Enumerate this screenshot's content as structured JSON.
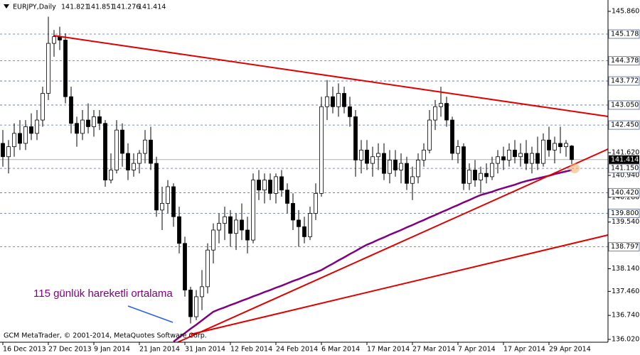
{
  "chart_data": {
    "type": "candlestick",
    "title": "EURJPY,Daily",
    "categories": [
      "16 Dec 2013",
      null,
      null,
      null,
      null,
      null,
      null,
      null,
      "27 Dec 2013",
      null,
      null,
      null,
      null,
      null,
      null,
      null,
      "9 Jan 2014",
      null,
      null,
      null,
      null,
      null,
      null,
      null,
      "21 Jan 2014",
      null,
      null,
      null,
      null,
      null,
      null,
      null,
      "31 Jan 2014",
      null,
      null,
      null,
      null,
      null,
      null,
      null,
      "12 Feb 2014",
      null,
      null,
      null,
      null,
      null,
      null,
      null,
      "24 Feb 2014",
      null,
      null,
      null,
      null,
      null,
      null,
      null,
      "6 Mar 2014",
      null,
      null,
      null,
      null,
      null,
      null,
      null,
      "17 Mar 2014",
      null,
      null,
      null,
      null,
      null,
      null,
      null,
      "27 Mar 2014",
      null,
      null,
      null,
      null,
      null,
      null,
      null,
      "7 Apr 2014",
      null,
      null,
      null,
      null,
      null,
      null,
      null,
      "17 Apr 2014",
      null,
      null,
      null,
      null,
      null,
      null,
      null,
      "29 Apr 2014",
      null,
      null,
      null,
      null
    ],
    "ohlc": [
      [
        141.9,
        142.3,
        141.2,
        141.5
      ],
      [
        141.5,
        142.0,
        141.0,
        141.8
      ],
      [
        141.8,
        142.5,
        141.5,
        142.2
      ],
      [
        142.2,
        142.6,
        141.7,
        141.9
      ],
      [
        141.9,
        142.6,
        141.7,
        142.4
      ],
      [
        142.4,
        142.8,
        142.0,
        142.2
      ],
      [
        142.2,
        142.9,
        142.0,
        142.6
      ],
      [
        142.6,
        143.6,
        142.4,
        143.4
      ],
      [
        143.4,
        145.7,
        143.2,
        144.9
      ],
      [
        144.9,
        145.3,
        144.5,
        145.1
      ],
      [
        145.1,
        145.4,
        144.7,
        145.0
      ],
      [
        145.0,
        145.2,
        143.1,
        143.3
      ],
      [
        143.3,
        143.6,
        142.2,
        142.5
      ],
      [
        142.5,
        142.7,
        141.8,
        142.2
      ],
      [
        142.2,
        142.9,
        142.0,
        142.6
      ],
      [
        142.6,
        143.1,
        142.2,
        142.4
      ],
      [
        142.4,
        142.9,
        142.1,
        142.7
      ],
      [
        142.7,
        142.9,
        142.3,
        142.5
      ],
      [
        142.5,
        142.6,
        140.6,
        140.8
      ],
      [
        140.8,
        141.6,
        140.7,
        141.1
      ],
      [
        141.1,
        142.6,
        141.0,
        142.3
      ],
      [
        142.3,
        142.5,
        141.2,
        141.6
      ],
      [
        141.6,
        141.9,
        140.8,
        141.1
      ],
      [
        141.1,
        141.6,
        140.9,
        141.3
      ],
      [
        141.3,
        141.7,
        141.0,
        141.6
      ],
      [
        141.6,
        142.3,
        141.3,
        142.0
      ],
      [
        142.0,
        142.4,
        141.1,
        141.3
      ],
      [
        141.3,
        141.5,
        139.7,
        139.9
      ],
      [
        139.9,
        140.6,
        139.3,
        140.1
      ],
      [
        140.1,
        140.8,
        139.8,
        140.6
      ],
      [
        140.6,
        140.7,
        139.4,
        139.7
      ],
      [
        139.7,
        140.0,
        138.6,
        138.9
      ],
      [
        138.9,
        139.1,
        137.3,
        137.5
      ],
      [
        137.5,
        137.6,
        136.5,
        136.7
      ],
      [
        136.7,
        137.5,
        136.6,
        137.3
      ],
      [
        137.3,
        138.1,
        136.9,
        137.6
      ],
      [
        137.6,
        138.9,
        137.4,
        138.7
      ],
      [
        138.7,
        139.5,
        138.3,
        139.3
      ],
      [
        139.3,
        139.8,
        138.9,
        139.5
      ],
      [
        139.5,
        140.0,
        139.0,
        139.7
      ],
      [
        139.7,
        139.9,
        138.8,
        139.2
      ],
      [
        139.2,
        139.8,
        138.7,
        139.6
      ],
      [
        139.6,
        140.1,
        139.0,
        139.3
      ],
      [
        139.3,
        139.7,
        138.6,
        139.0
      ],
      [
        139.0,
        141.0,
        138.9,
        140.8
      ],
      [
        140.8,
        141.1,
        140.2,
        140.5
      ],
      [
        140.5,
        141.0,
        140.1,
        140.8
      ],
      [
        140.8,
        141.0,
        140.2,
        140.4
      ],
      [
        140.4,
        141.0,
        140.1,
        140.9
      ],
      [
        140.9,
        141.1,
        140.3,
        140.5
      ],
      [
        140.5,
        140.7,
        139.8,
        140.1
      ],
      [
        140.1,
        140.4,
        139.3,
        139.6
      ],
      [
        139.6,
        139.9,
        138.8,
        139.4
      ],
      [
        139.4,
        139.7,
        138.9,
        139.1
      ],
      [
        139.1,
        140.0,
        139.0,
        139.8
      ],
      [
        139.8,
        140.7,
        139.6,
        140.4
      ],
      [
        140.4,
        143.3,
        140.3,
        143.0
      ],
      [
        143.0,
        143.8,
        142.6,
        143.3
      ],
      [
        143.3,
        143.6,
        142.8,
        143.0
      ],
      [
        143.0,
        143.7,
        142.7,
        143.4
      ],
      [
        143.4,
        143.6,
        142.8,
        143.0
      ],
      [
        143.0,
        143.3,
        142.4,
        142.7
      ],
      [
        142.7,
        142.9,
        140.9,
        141.4
      ],
      [
        141.4,
        142.0,
        141.0,
        141.7
      ],
      [
        141.7,
        142.0,
        141.1,
        141.3
      ],
      [
        141.3,
        141.8,
        140.9,
        141.5
      ],
      [
        141.5,
        141.9,
        141.1,
        141.6
      ],
      [
        141.6,
        141.9,
        140.8,
        141.0
      ],
      [
        141.0,
        141.7,
        140.7,
        141.4
      ],
      [
        141.4,
        141.7,
        140.9,
        141.1
      ],
      [
        141.1,
        141.6,
        140.7,
        141.3
      ],
      [
        141.3,
        141.5,
        140.5,
        140.7
      ],
      [
        140.7,
        141.2,
        140.2,
        140.9
      ],
      [
        140.9,
        141.6,
        140.7,
        141.4
      ],
      [
        141.4,
        141.9,
        141.2,
        141.7
      ],
      [
        141.7,
        142.9,
        141.6,
        142.6
      ],
      [
        142.6,
        143.2,
        142.3,
        143.0
      ],
      [
        143.0,
        143.6,
        142.7,
        143.1
      ],
      [
        143.1,
        143.3,
        142.4,
        142.6
      ],
      [
        142.6,
        142.7,
        141.4,
        141.6
      ],
      [
        141.6,
        142.0,
        141.3,
        141.8
      ],
      [
        141.8,
        141.9,
        140.5,
        140.7
      ],
      [
        140.7,
        141.3,
        140.5,
        141.1
      ],
      [
        141.1,
        141.4,
        140.6,
        140.8
      ],
      [
        140.8,
        141.2,
        140.4,
        141.0
      ],
      [
        141.0,
        141.3,
        140.7,
        140.9
      ],
      [
        140.9,
        141.5,
        140.8,
        141.3
      ],
      [
        141.3,
        141.7,
        141.0,
        141.5
      ],
      [
        141.5,
        141.8,
        141.1,
        141.4
      ],
      [
        141.4,
        141.9,
        141.2,
        141.7
      ],
      [
        141.7,
        142.0,
        141.3,
        141.5
      ],
      [
        141.5,
        141.9,
        141.2,
        141.6
      ],
      [
        141.6,
        142.0,
        141.1,
        141.3
      ],
      [
        141.3,
        141.8,
        141.0,
        141.6
      ],
      [
        141.6,
        142.1,
        141.1,
        141.3
      ],
      [
        141.3,
        142.2,
        141.2,
        142.0
      ],
      [
        142.0,
        142.4,
        141.5,
        141.7
      ],
      [
        141.7,
        142.1,
        141.3,
        141.9
      ],
      [
        141.9,
        142.4,
        141.6,
        141.8
      ],
      [
        141.8,
        142.0,
        141.5,
        141.9
      ],
      [
        141.821,
        141.851,
        141.276,
        141.414
      ]
    ],
    "ma": {
      "label": "115 günlük hareketli ortalama",
      "color": "#800080",
      "values": [
        null,
        null,
        null,
        null,
        null,
        null,
        null,
        null,
        null,
        null,
        null,
        null,
        null,
        null,
        null,
        null,
        null,
        null,
        null,
        null,
        null,
        null,
        null,
        null,
        null,
        null,
        null,
        null,
        null,
        null,
        135.95,
        136.08,
        136.21,
        136.34,
        136.46,
        136.59,
        136.72,
        136.85,
        136.92,
        136.98,
        137.05,
        137.11,
        137.18,
        137.24,
        137.31,
        137.37,
        137.44,
        137.5,
        137.57,
        137.63,
        137.7,
        137.77,
        137.83,
        137.9,
        137.97,
        138.03,
        138.1,
        138.2,
        138.29,
        138.39,
        138.48,
        138.58,
        138.67,
        138.77,
        138.86,
        138.93,
        139.01,
        139.08,
        139.16,
        139.23,
        139.3,
        139.38,
        139.45,
        139.53,
        139.6,
        139.68,
        139.75,
        139.83,
        139.9,
        139.98,
        140.05,
        140.13,
        140.2,
        140.28,
        140.35,
        140.4,
        140.45,
        140.51,
        140.56,
        140.61,
        140.66,
        140.72,
        140.77,
        140.81,
        140.85,
        140.89,
        140.93,
        140.98,
        141.02,
        141.06,
        141.1
      ]
    },
    "ylim": [
      135.935,
      146.201
    ],
    "yticks": [
      {
        "value": 145.86,
        "label": "145.860"
      },
      {
        "value": 141.62,
        "label": "141.620"
      },
      {
        "value": 140.94,
        "label": "140.940"
      },
      {
        "value": 140.28,
        "label": "140.280"
      },
      {
        "value": 139.54,
        "label": "139.540"
      },
      {
        "value": 138.14,
        "label": "138.140"
      },
      {
        "value": 137.46,
        "label": "137.460"
      },
      {
        "value": 136.74,
        "label": "136.740"
      },
      {
        "value": 136.02,
        "label": "136.020"
      }
    ],
    "levels": [
      {
        "value": 145.178,
        "label": "145.178"
      },
      {
        "value": 144.378,
        "label": "144.378"
      },
      {
        "value": 143.772,
        "label": "143.772"
      },
      {
        "value": 143.05,
        "label": "143.050"
      },
      {
        "value": 142.45,
        "label": "142.450"
      },
      {
        "value": 141.15,
        "label": "141.150"
      },
      {
        "value": 140.42,
        "label": "140.420"
      },
      {
        "value": 139.8,
        "label": "139.800"
      },
      {
        "value": 138.797,
        "label": "138.797"
      }
    ],
    "bull_color": "#ffffff",
    "bear_color": "#000000",
    "footer": "GCM MetaTrader, © 2001-2014, MetaQuotes Software Corp."
  }
}
